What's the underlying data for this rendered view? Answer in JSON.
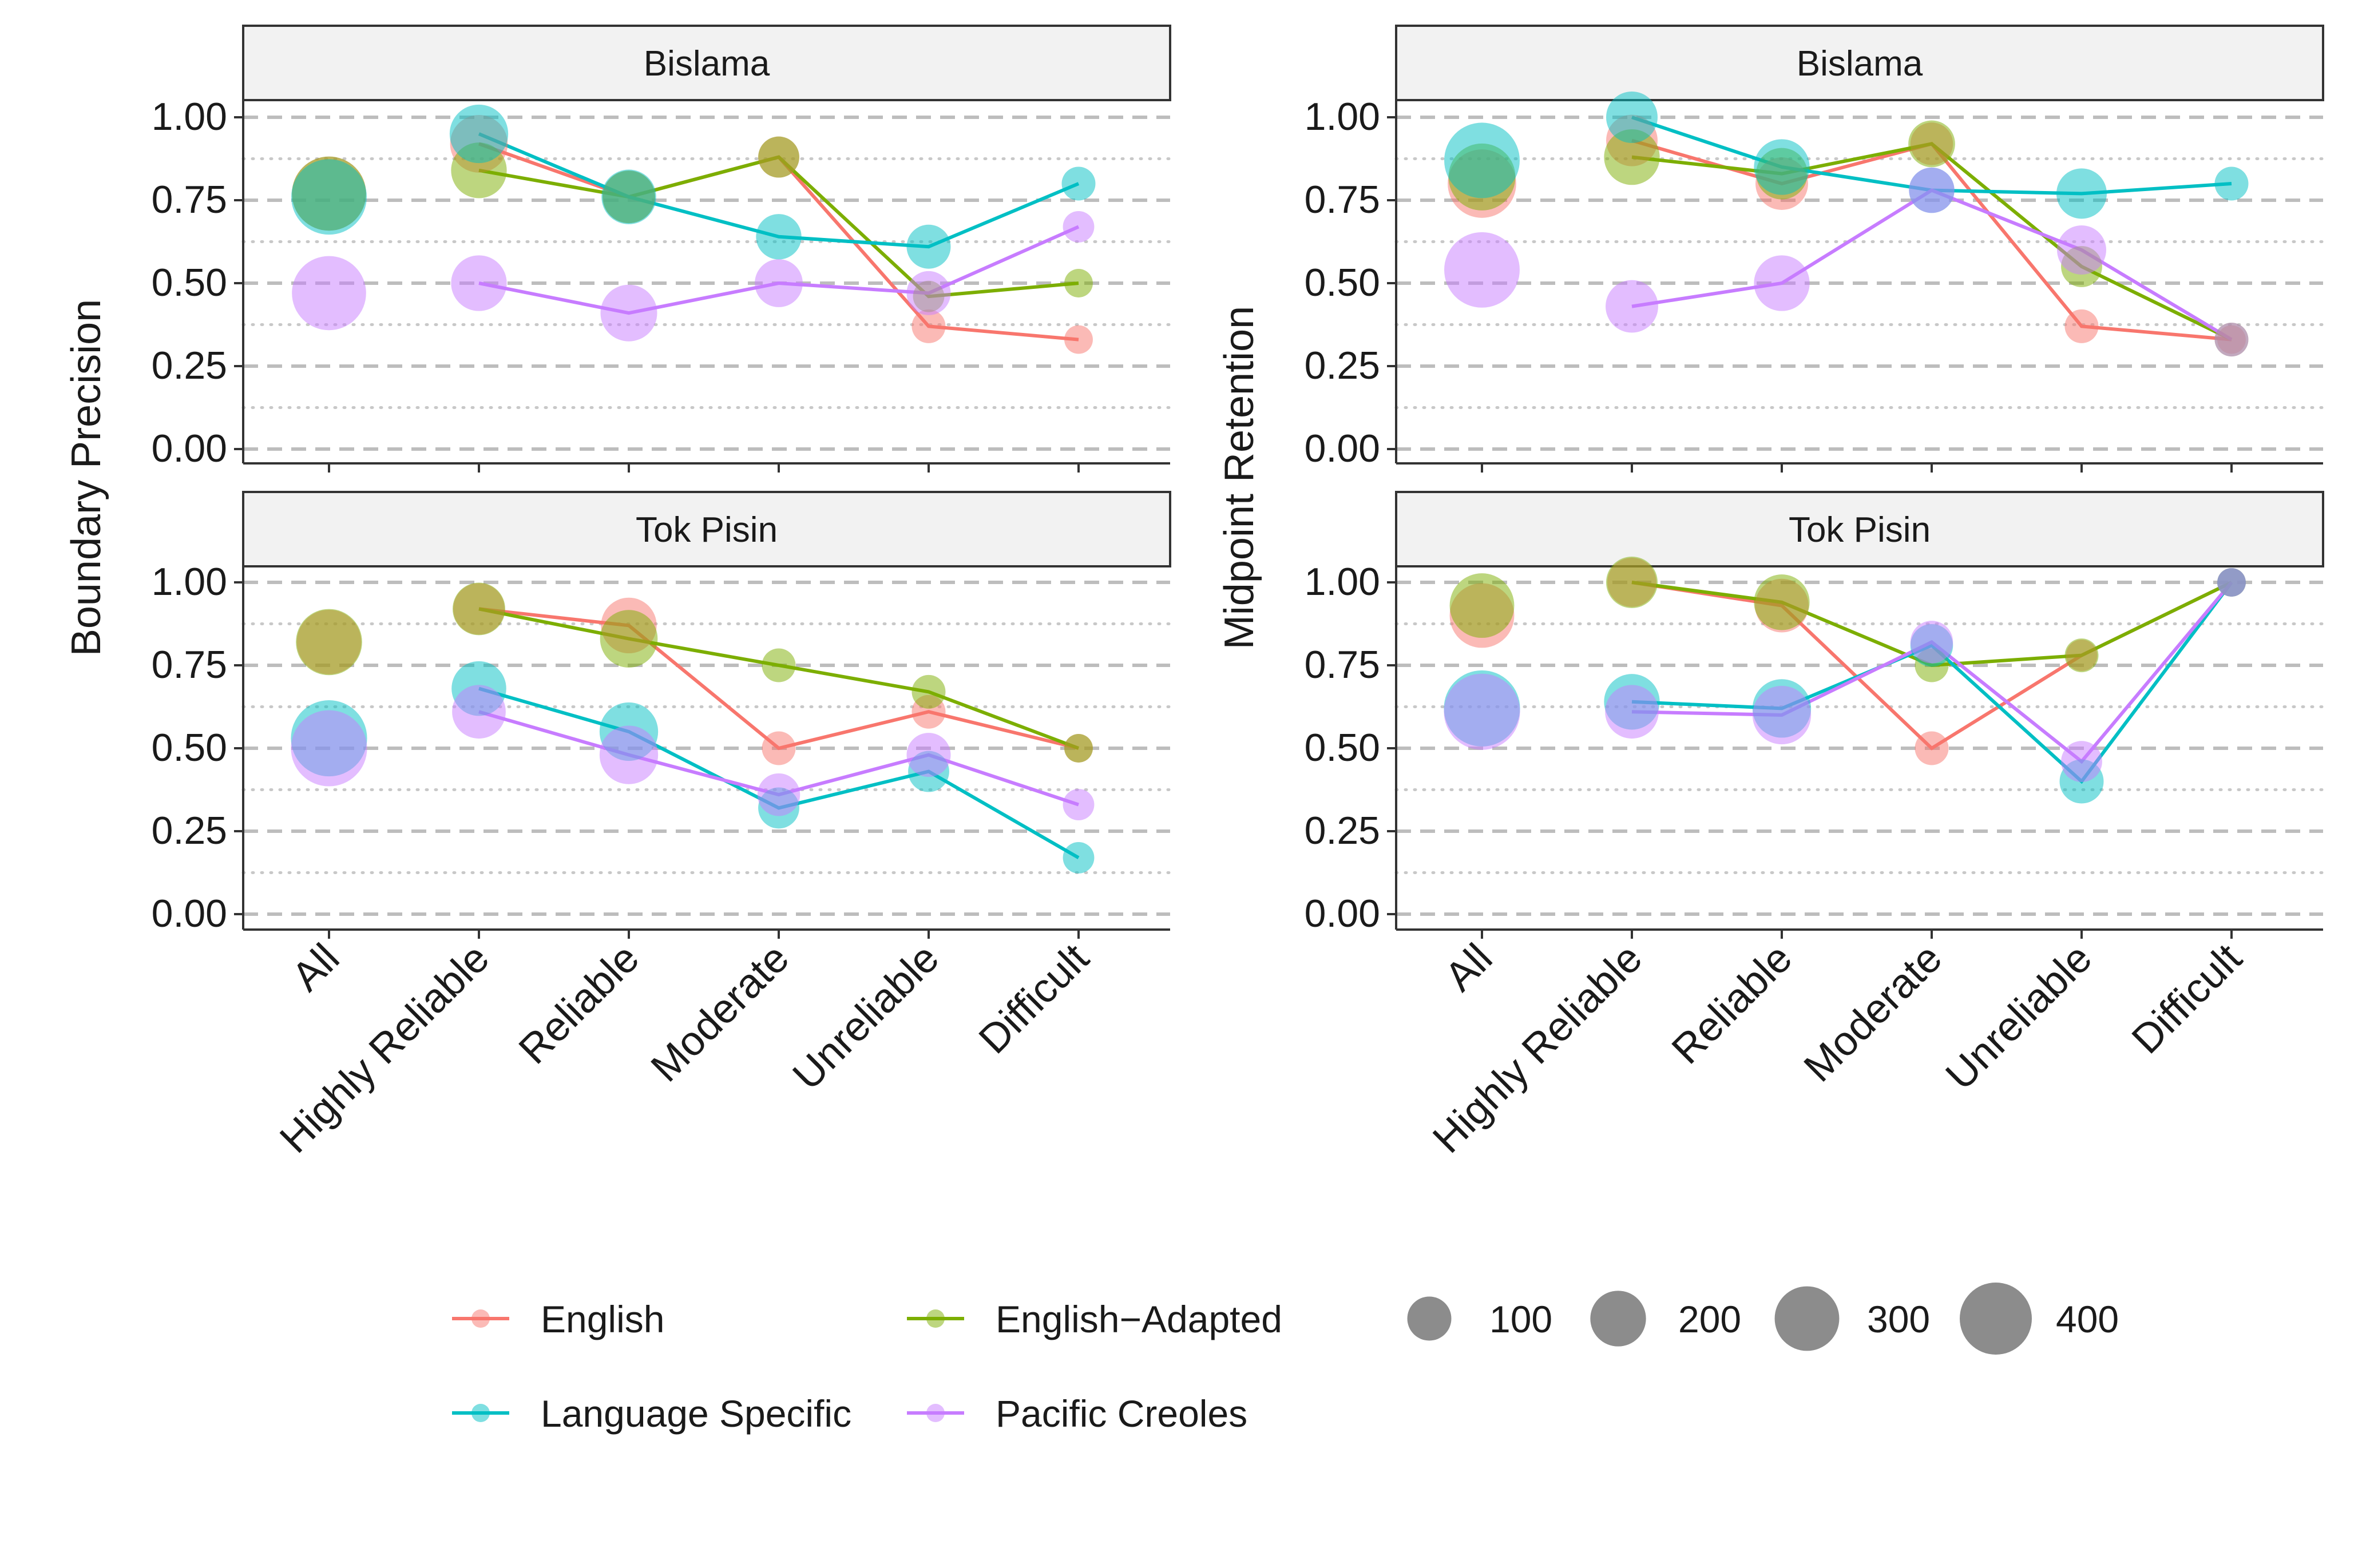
{
  "chart_data": {
    "type": "line",
    "categories": [
      "All",
      "Highly Reliable",
      "Reliable",
      "Moderate",
      "Unreliable",
      "Difficult"
    ],
    "ylim": [
      0,
      1.0
    ],
    "y_ticks": [
      "0.00",
      "0.25",
      "0.50",
      "0.75",
      "1.00"
    ],
    "y_tick_values": [
      0,
      0.25,
      0.5,
      0.75,
      1.0
    ],
    "legend_position": "bottom",
    "series_legend": [
      {
        "name": "English",
        "color": "#F8766D"
      },
      {
        "name": "English−Adapted",
        "color": "#7CAE00"
      },
      {
        "name": "Language Specific",
        "color": "#00BFC4"
      },
      {
        "name": "Pacific Creoles",
        "color": "#C77CFF"
      }
    ],
    "size_legend": {
      "labels": [
        "100",
        "200",
        "300",
        "400"
      ],
      "values": [
        100,
        200,
        300,
        400
      ]
    },
    "panels": [
      {
        "title": "Bislama",
        "ylabel": "Boundary Precision",
        "series": [
          {
            "name": "English",
            "values": [
              0.77,
              0.92,
              0.76,
              0.88,
              0.37,
              0.33
            ],
            "sizes": [
              430,
              220,
              170,
              80,
              40,
              20
            ]
          },
          {
            "name": "English−Adapted",
            "values": [
              0.77,
              0.84,
              0.76,
              0.88,
              0.46,
              0.5
            ],
            "sizes": [
              430,
              200,
              170,
              80,
              30,
              20
            ]
          },
          {
            "name": "Language Specific",
            "values": [
              0.76,
              0.95,
              0.76,
              0.64,
              0.61,
              0.8
            ],
            "sizes": [
              450,
              230,
              190,
              110,
              100,
              40
            ]
          },
          {
            "name": "Pacific Creoles",
            "values": [
              0.47,
              0.5,
              0.41,
              0.5,
              0.47,
              0.67
            ],
            "sizes": [
              430,
              200,
              210,
              130,
              100,
              30
            ]
          }
        ]
      },
      {
        "title": "Bislama",
        "ylabel": "Midpoint Retention",
        "series": [
          {
            "name": "English",
            "values": [
              0.8,
              0.93,
              0.8,
              0.92,
              0.37,
              0.33
            ],
            "sizes": [
              350,
              160,
              170,
              90,
              40,
              20
            ]
          },
          {
            "name": "English−Adapted",
            "values": [
              0.82,
              0.88,
              0.83,
              0.92,
              0.55,
              0.33
            ],
            "sizes": [
              330,
              200,
              160,
              120,
              80,
              40
            ]
          },
          {
            "name": "Language Specific",
            "values": [
              0.87,
              1.0,
              0.85,
              0.78,
              0.77,
              0.8
            ],
            "sizes": [
              450,
              160,
              200,
              110,
              150,
              40
            ]
          },
          {
            "name": "Pacific Creoles",
            "values": [
              0.54,
              0.43,
              0.5,
              0.78,
              0.6,
              0.33
            ],
            "sizes": [
              450,
              170,
              200,
              110,
              140,
              40
            ]
          }
        ]
      },
      {
        "title": "Tok Pisin",
        "ylabel": "Boundary Precision",
        "series": [
          {
            "name": "English",
            "values": [
              0.82,
              0.92,
              0.87,
              0.5,
              0.61,
              0.5
            ],
            "sizes": [
              300,
              160,
              200,
              40,
              40,
              20
            ]
          },
          {
            "name": "English−Adapted",
            "values": [
              0.82,
              0.92,
              0.83,
              0.75,
              0.67,
              0.5
            ],
            "sizes": [
              320,
              170,
              220,
              40,
              40,
              20
            ]
          },
          {
            "name": "Language Specific",
            "values": [
              0.53,
              0.68,
              0.55,
              0.32,
              0.43,
              0.17
            ],
            "sizes": [
              460,
              190,
              230,
              80,
              80,
              30
            ]
          },
          {
            "name": "Pacific Creoles",
            "values": [
              0.5,
              0.61,
              0.48,
              0.36,
              0.48,
              0.33
            ],
            "sizes": [
              460,
              180,
              230,
              90,
              100,
              30
            ]
          }
        ]
      },
      {
        "title": "Tok Pisin",
        "ylabel": "Midpoint Retention",
        "series": [
          {
            "name": "English",
            "values": [
              0.9,
              1.0,
              0.93,
              0.5,
              0.78,
              1.0
            ],
            "sizes": [
              300,
              140,
              180,
              40,
              30,
              20
            ]
          },
          {
            "name": "English−Adapted",
            "values": [
              0.93,
              1.0,
              0.94,
              0.75,
              0.78,
              1.0
            ],
            "sizes": [
              300,
              160,
              200,
              40,
              40,
              20
            ]
          },
          {
            "name": "Language Specific",
            "values": [
              0.62,
              0.64,
              0.62,
              0.81,
              0.4,
              1.0
            ],
            "sizes": [
              460,
              200,
              230,
              90,
              100,
              20
            ]
          },
          {
            "name": "Pacific Creoles",
            "values": [
              0.61,
              0.61,
              0.6,
              0.82,
              0.46,
              1.0
            ],
            "sizes": [
              460,
              180,
              230,
              90,
              80,
              20
            ]
          }
        ]
      }
    ]
  }
}
